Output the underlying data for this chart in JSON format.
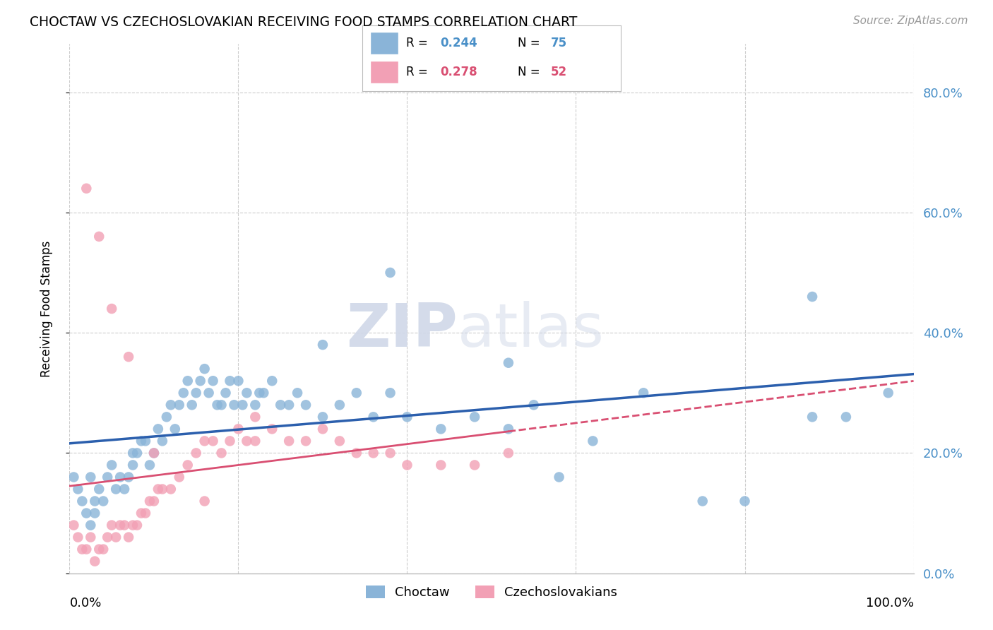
{
  "title": "CHOCTAW VS CZECHOSLOVAKIAN RECEIVING FOOD STAMPS CORRELATION CHART",
  "source": "Source: ZipAtlas.com",
  "ylabel": "Receiving Food Stamps",
  "xlim": [
    0,
    100
  ],
  "ylim": [
    0,
    88
  ],
  "ytick_vals": [
    0,
    20,
    40,
    60,
    80
  ],
  "ytick_labels": [
    "0.0%",
    "20.0%",
    "40.0%",
    "60.0%",
    "80.0%"
  ],
  "xtick_labels_show": [
    "0.0%",
    "100.0%"
  ],
  "legend_blue_r": "0.244",
  "legend_blue_n": "75",
  "legend_pink_r": "0.278",
  "legend_pink_n": "52",
  "legend_blue_label": "Choctaw",
  "legend_pink_label": "Czechoslovakians",
  "blue_color": "#8ab4d8",
  "pink_color": "#f2a0b5",
  "trendline_blue_color": "#2b5fad",
  "trendline_pink_color": "#d94f72",
  "watermark_color": "#d0d8e8",
  "background_color": "#ffffff",
  "grid_color": "#cccccc",
  "right_label_color": "#4a90c8",
  "r_n_color_blue": "#4a90c8",
  "r_n_color_pink": "#d94f72",
  "choctaw_x": [
    0.5,
    1.0,
    1.5,
    2.0,
    2.5,
    2.5,
    3.0,
    3.0,
    3.5,
    4.0,
    4.5,
    5.0,
    5.5,
    6.0,
    6.5,
    7.0,
    7.5,
    7.5,
    8.0,
    8.5,
    9.0,
    9.5,
    10.0,
    10.5,
    11.0,
    11.5,
    12.0,
    12.5,
    13.0,
    13.5,
    14.0,
    14.5,
    15.0,
    15.5,
    16.0,
    16.5,
    17.0,
    17.5,
    18.0,
    18.5,
    19.0,
    19.5,
    20.0,
    20.5,
    21.0,
    22.0,
    22.5,
    23.0,
    24.0,
    25.0,
    26.0,
    27.0,
    28.0,
    30.0,
    32.0,
    34.0,
    36.0,
    38.0,
    40.0,
    44.0,
    48.0,
    52.0,
    55.0,
    58.0,
    62.0,
    68.0,
    75.0,
    80.0,
    88.0,
    92.0,
    97.0,
    30.0,
    38.0,
    52.0,
    88.0
  ],
  "choctaw_y": [
    16.0,
    14.0,
    12.0,
    10.0,
    16.0,
    8.0,
    12.0,
    10.0,
    14.0,
    12.0,
    16.0,
    18.0,
    14.0,
    16.0,
    14.0,
    16.0,
    18.0,
    20.0,
    20.0,
    22.0,
    22.0,
    18.0,
    20.0,
    24.0,
    22.0,
    26.0,
    28.0,
    24.0,
    28.0,
    30.0,
    32.0,
    28.0,
    30.0,
    32.0,
    34.0,
    30.0,
    32.0,
    28.0,
    28.0,
    30.0,
    32.0,
    28.0,
    32.0,
    28.0,
    30.0,
    28.0,
    30.0,
    30.0,
    32.0,
    28.0,
    28.0,
    30.0,
    28.0,
    26.0,
    28.0,
    30.0,
    26.0,
    30.0,
    26.0,
    24.0,
    26.0,
    24.0,
    28.0,
    16.0,
    22.0,
    30.0,
    12.0,
    12.0,
    26.0,
    26.0,
    30.0,
    38.0,
    50.0,
    35.0,
    46.0
  ],
  "czech_x": [
    0.5,
    1.0,
    1.5,
    2.0,
    2.5,
    3.0,
    3.5,
    4.0,
    4.5,
    5.0,
    5.5,
    6.0,
    6.5,
    7.0,
    7.5,
    8.0,
    8.5,
    9.0,
    9.5,
    10.0,
    10.5,
    11.0,
    12.0,
    13.0,
    14.0,
    15.0,
    16.0,
    17.0,
    18.0,
    19.0,
    20.0,
    21.0,
    22.0,
    24.0,
    26.0,
    28.0,
    30.0,
    32.0,
    34.0,
    36.0,
    38.0,
    40.0,
    44.0,
    48.0,
    52.0,
    2.0,
    3.5,
    5.0,
    7.0,
    10.0,
    16.0,
    22.0
  ],
  "czech_y": [
    8.0,
    6.0,
    4.0,
    4.0,
    6.0,
    2.0,
    4.0,
    4.0,
    6.0,
    8.0,
    6.0,
    8.0,
    8.0,
    6.0,
    8.0,
    8.0,
    10.0,
    10.0,
    12.0,
    12.0,
    14.0,
    14.0,
    14.0,
    16.0,
    18.0,
    20.0,
    22.0,
    22.0,
    20.0,
    22.0,
    24.0,
    22.0,
    22.0,
    24.0,
    22.0,
    22.0,
    24.0,
    22.0,
    20.0,
    20.0,
    20.0,
    18.0,
    18.0,
    18.0,
    20.0,
    64.0,
    56.0,
    44.0,
    36.0,
    20.0,
    12.0,
    26.0
  ]
}
